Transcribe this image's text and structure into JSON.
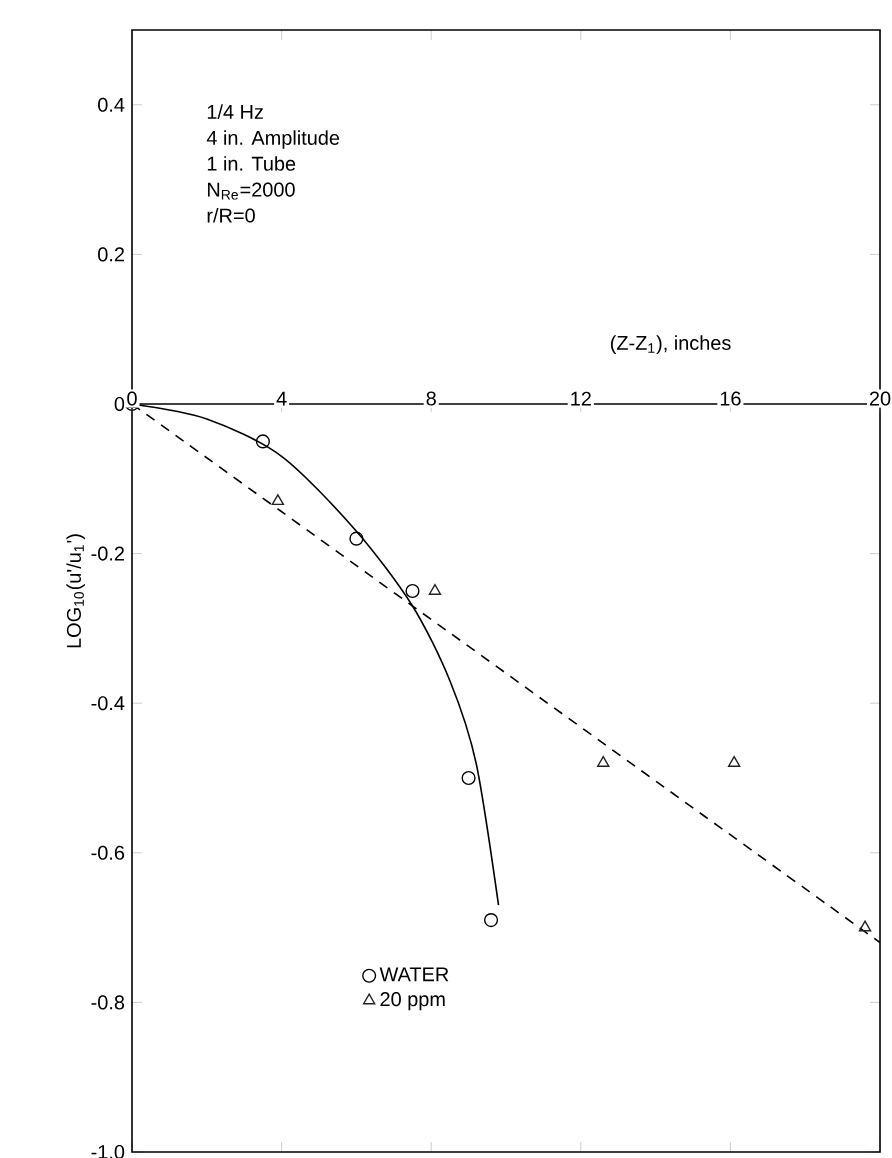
{
  "chart_data": {
    "type": "scatter",
    "xlabel": "(Z-Z$_{1}$), inches",
    "ylabel": "LOG$_{10}$(u'/u$_{1}$')",
    "annotations": [
      "1/4 Hz",
      "4 in. Amplitude",
      "1 in. Tube",
      "N$_{Re}$=2000",
      "r/R=0"
    ],
    "xlim": [
      0,
      20
    ],
    "xticks": [
      0,
      4,
      8,
      12,
      16,
      20
    ],
    "ylim": [
      -1.0,
      0.5
    ],
    "yticks": [
      {
        "value": 0.4,
        "label": "0.4"
      },
      {
        "value": 0.2,
        "label": "0.2"
      },
      {
        "value": 0,
        "label": "0"
      },
      {
        "value": -0.2,
        "label": "-0.2"
      },
      {
        "value": -0.4,
        "label": "-0.4"
      },
      {
        "value": -0.6,
        "label": "-0.6"
      },
      {
        "value": -0.8,
        "label": "-0.8"
      },
      {
        "value": -1.0,
        "label": "-1.0"
      }
    ],
    "grid": false,
    "legend": "bottom left",
    "series": [
      {
        "name": "WATER",
        "marker": "circle",
        "color": "#000000",
        "x": [
          0,
          3.5,
          6.0,
          7.5,
          9.0,
          9.6
        ],
        "values": [
          0,
          -0.05,
          -0.18,
          -0.25,
          -0.5,
          -0.69
        ]
      },
      {
        "name": "20 ppm",
        "marker": "triangle",
        "color": "#222222",
        "x": [
          0,
          3.9,
          8.1,
          12.6,
          16.1,
          19.6
        ],
        "values": [
          0,
          -0.13,
          -0.25,
          -0.48,
          -0.48,
          -0.7
        ]
      },
      {
        "type": "line",
        "line_style": "solid",
        "color": "#000000",
        "x": [
          0,
          2,
          4,
          6,
          7.5,
          8.5,
          9.2,
          9.8
        ],
        "values": [
          0,
          -0.02,
          -0.07,
          -0.17,
          -0.27,
          -0.37,
          -0.48,
          -0.67
        ]
      },
      {
        "type": "line",
        "line_style": "dashed",
        "color": "#000000",
        "x": [
          0,
          20
        ],
        "values": [
          0,
          -0.72
        ]
      }
    ]
  }
}
